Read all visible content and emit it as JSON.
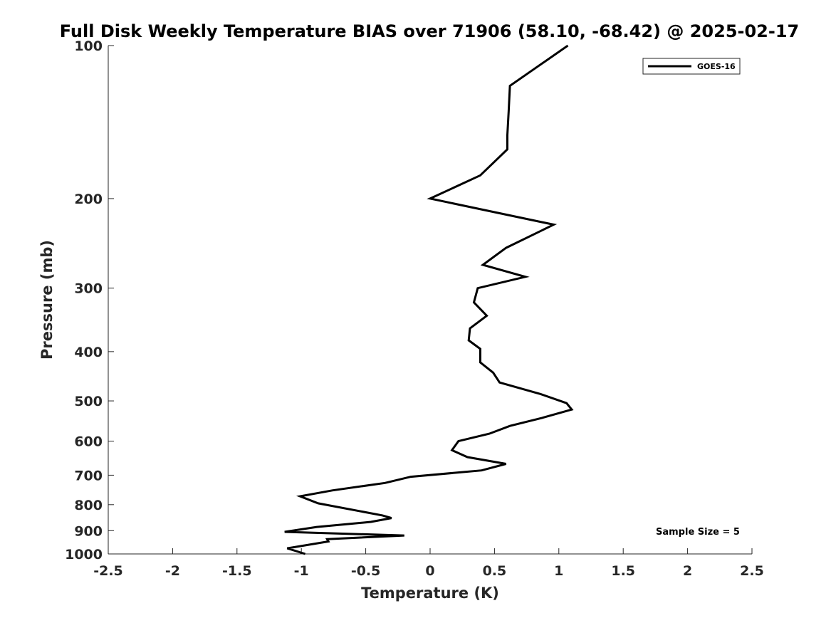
{
  "chart_data": {
    "type": "line",
    "title": "Full Disk Weekly Temperature BIAS over 71906 (58.10, -68.42) @ 2025-02-17",
    "xlabel": "Temperature (K)",
    "ylabel": "Pressure (mb)",
    "xlim": [
      -2.5,
      2.5
    ],
    "ylim": [
      100,
      1000
    ],
    "yscale": "log",
    "y_reversed": true,
    "grid": false,
    "legend_position": "top-right",
    "x_ticks": [
      -2.5,
      -2,
      -1.5,
      -1,
      -0.5,
      0,
      0.5,
      1,
      1.5,
      2,
      2.5
    ],
    "x_tick_labels": [
      "-2.5",
      "-2",
      "-1.5",
      "-1",
      "-0.5",
      "0",
      "0.5",
      "1",
      "1.5",
      "2",
      "2.5"
    ],
    "y_ticks": [
      100,
      200,
      300,
      400,
      500,
      600,
      700,
      800,
      900,
      1000
    ],
    "y_tick_labels": [
      "100",
      "200",
      "300",
      "400",
      "500",
      "600",
      "700",
      "800",
      "900",
      "1000"
    ],
    "annotation": "Sample Size = 5",
    "series": [
      {
        "name": "GOES-16",
        "color": "#000000",
        "points": [
          [
            1.07,
            100
          ],
          [
            0.62,
            120
          ],
          [
            0.61,
            135
          ],
          [
            0.6,
            150
          ],
          [
            0.6,
            160
          ],
          [
            0.39,
            180
          ],
          [
            0.0,
            200
          ],
          [
            0.96,
            225
          ],
          [
            0.59,
            250
          ],
          [
            0.41,
            270
          ],
          [
            0.74,
            285
          ],
          [
            0.37,
            300
          ],
          [
            0.34,
            320
          ],
          [
            0.44,
            340
          ],
          [
            0.31,
            360
          ],
          [
            0.3,
            380
          ],
          [
            0.39,
            395
          ],
          [
            0.39,
            420
          ],
          [
            0.49,
            440
          ],
          [
            0.54,
            460
          ],
          [
            0.86,
            485
          ],
          [
            1.06,
            505
          ],
          [
            1.1,
            520
          ],
          [
            0.87,
            540
          ],
          [
            0.62,
            560
          ],
          [
            0.46,
            580
          ],
          [
            0.22,
            600
          ],
          [
            0.17,
            625
          ],
          [
            0.29,
            645
          ],
          [
            0.59,
            665
          ],
          [
            0.4,
            685
          ],
          [
            -0.15,
            705
          ],
          [
            -0.35,
            725
          ],
          [
            -0.76,
            750
          ],
          [
            -1.01,
            770
          ],
          [
            -0.87,
            795
          ],
          [
            -0.37,
            840
          ],
          [
            -0.3,
            850
          ],
          [
            -0.46,
            865
          ],
          [
            -0.88,
            885
          ],
          [
            -1.13,
            905
          ],
          [
            -0.2,
            920
          ],
          [
            -0.8,
            935
          ],
          [
            -0.79,
            945
          ],
          [
            -1.11,
            975
          ],
          [
            -0.97,
            1000
          ]
        ]
      }
    ]
  }
}
